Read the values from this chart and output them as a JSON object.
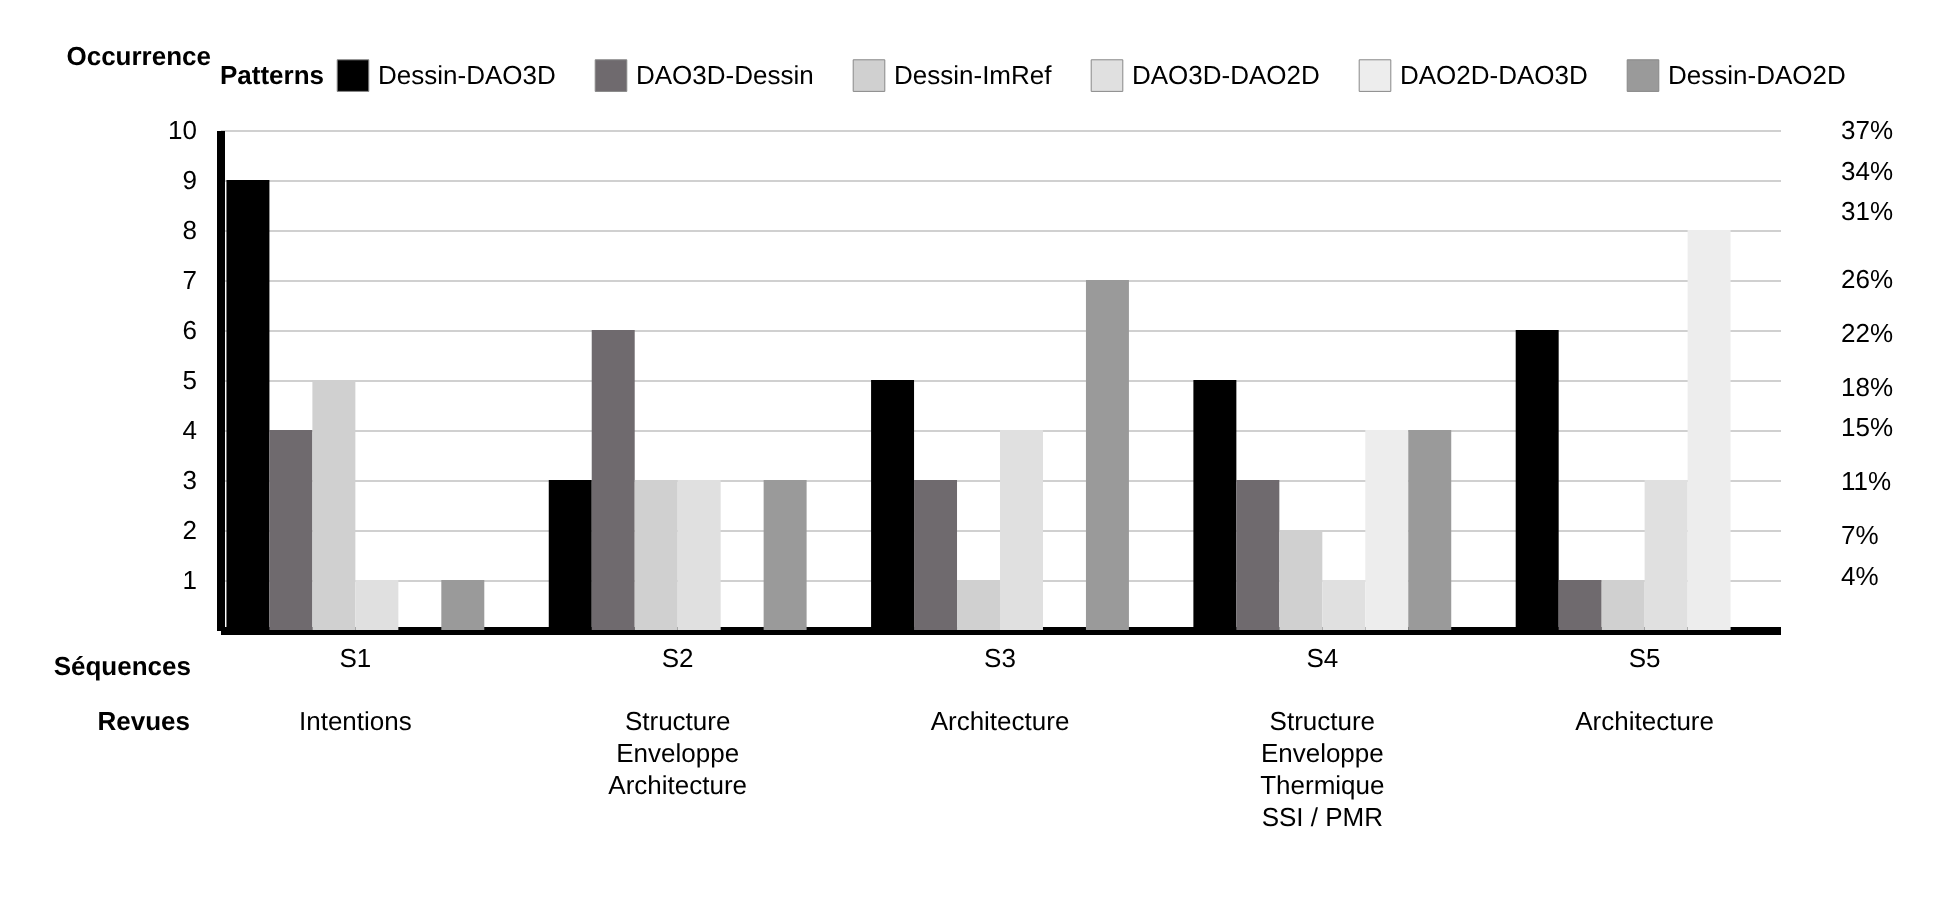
{
  "chart_data": {
    "type": "bar",
    "ylabel": "Occurrence",
    "xlabel": "Séquences",
    "legend_title": "Patterns",
    "legend": "top",
    "grid": "y",
    "categories": [
      "S1",
      "S2",
      "S3",
      "S4",
      "S5"
    ],
    "ylim": [
      0,
      10
    ],
    "yticks": [
      1,
      2,
      3,
      4,
      5,
      6,
      7,
      8,
      9,
      10
    ],
    "y2lim": [
      0,
      37
    ],
    "y2ticks": [
      {
        "value": 4,
        "label": "4%"
      },
      {
        "value": 7,
        "label": "7%"
      },
      {
        "value": 11,
        "label": "11%"
      },
      {
        "value": 15,
        "label": "15%"
      },
      {
        "value": 18,
        "label": "18%"
      },
      {
        "value": 22,
        "label": "22%"
      },
      {
        "value": 26,
        "label": "26%"
      },
      {
        "value": 31,
        "label": "31%"
      },
      {
        "value": 34,
        "label": "34%"
      },
      {
        "value": 37,
        "label": "37%"
      }
    ],
    "series": [
      {
        "name": "Dessin-DAO3D",
        "color": "#000000",
        "values": [
          9,
          3,
          5,
          5,
          6
        ]
      },
      {
        "name": "DAO3D-Dessin",
        "color": "#6f6a6e",
        "values": [
          4,
          6,
          3,
          3,
          1
        ]
      },
      {
        "name": "Dessin-ImRef",
        "color": "#d0d0d0",
        "values": [
          5,
          3,
          1,
          2,
          1
        ]
      },
      {
        "name": "DAO3D-DAO2D",
        "color": "#e0e0e0",
        "values": [
          1,
          3,
          4,
          1,
          3
        ]
      },
      {
        "name": "DAO2D-DAO3D",
        "color": "#ededed",
        "values": [
          0,
          0,
          0,
          4,
          8
        ]
      },
      {
        "name": "Dessin-DAO2D",
        "color": "#9a9a9a",
        "values": [
          1,
          3,
          7,
          4,
          0
        ]
      }
    ],
    "annotations": [
      "Revues",
      "Intentions",
      "Structure\nEnveloppe\nArchitecture",
      "Architecture",
      "Structure\nEnveloppe\nThermique\nSSI / PMR",
      "Architecture"
    ]
  }
}
